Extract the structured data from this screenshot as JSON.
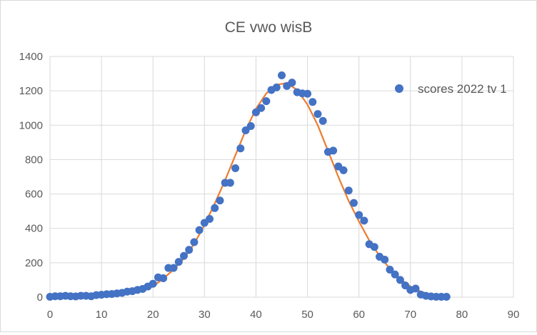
{
  "chart_data": {
    "type": "scatter",
    "title": "CE vwo wisB",
    "xlabel": "",
    "ylabel": "",
    "xlim": [
      0,
      90
    ],
    "ylim": [
      0,
      1400
    ],
    "xticks": [
      0,
      10,
      20,
      30,
      40,
      50,
      60,
      70,
      80,
      90
    ],
    "yticks": [
      0,
      200,
      400,
      600,
      800,
      1000,
      1200,
      1400
    ],
    "grid": true,
    "legend_position": "right",
    "colors": {
      "points": "#4472c4",
      "fit": "#ed7d31",
      "grid": "#d9d9d9",
      "text": "#595959"
    },
    "series": [
      {
        "name": "scores 2022 tv 1",
        "kind": "scatter",
        "x": [
          0,
          1,
          2,
          3,
          4,
          5,
          6,
          7,
          8,
          9,
          10,
          11,
          12,
          13,
          14,
          15,
          16,
          17,
          18,
          19,
          20,
          21,
          22,
          23,
          24,
          25,
          26,
          27,
          28,
          29,
          30,
          31,
          32,
          33,
          34,
          35,
          36,
          37,
          38,
          39,
          40,
          41,
          42,
          43,
          44,
          45,
          46,
          47,
          48,
          49,
          50,
          51,
          52,
          53,
          54,
          55,
          56,
          57,
          58,
          59,
          60,
          61,
          62,
          63,
          64,
          65,
          66,
          67,
          68,
          69,
          70,
          71,
          72,
          73,
          74,
          75,
          76,
          77
        ],
        "y": [
          2,
          5,
          5,
          8,
          5,
          4,
          8,
          8,
          5,
          12,
          14,
          17,
          18,
          22,
          25,
          32,
          35,
          42,
          48,
          62,
          78,
          115,
          110,
          170,
          170,
          205,
          240,
          275,
          320,
          390,
          432,
          455,
          518,
          562,
          665,
          665,
          750,
          865,
          970,
          995,
          1075,
          1100,
          1140,
          1205,
          1220,
          1290,
          1228,
          1248,
          1192,
          1185,
          1183,
          1135,
          1065,
          1025,
          845,
          852,
          760,
          738,
          620,
          548,
          478,
          445,
          308,
          292,
          235,
          218,
          160,
          132,
          100,
          68,
          42,
          50,
          15,
          8,
          4,
          2,
          2,
          2
        ]
      },
      {
        "name": "",
        "kind": "line",
        "x": [
          0,
          2,
          4,
          6,
          8,
          10,
          12,
          14,
          16,
          18,
          20,
          22,
          24,
          26,
          28,
          30,
          32,
          34,
          36,
          38,
          40,
          42,
          44,
          46,
          48,
          50,
          52,
          54,
          56,
          58,
          60,
          62,
          64,
          66,
          68,
          70,
          72,
          74,
          76,
          77
        ],
        "y": [
          2,
          3,
          4,
          6,
          8,
          11,
          15,
          20,
          27,
          38,
          62,
          108,
          160,
          225,
          310,
          420,
          545,
          680,
          825,
          970,
          1095,
          1185,
          1235,
          1245,
          1205,
          1120,
          1000,
          850,
          700,
          560,
          440,
          330,
          240,
          165,
          105,
          62,
          32,
          14,
          5,
          3
        ]
      }
    ]
  }
}
